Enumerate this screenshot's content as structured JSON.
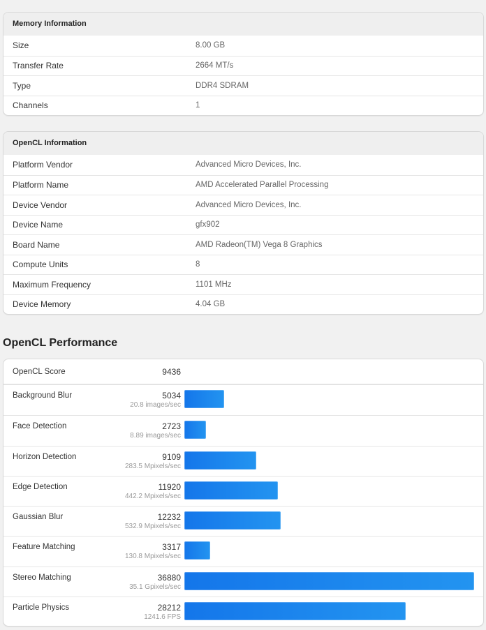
{
  "memory": {
    "title": "Memory Information",
    "rows": [
      {
        "label": "Size",
        "value": "8.00 GB"
      },
      {
        "label": "Transfer Rate",
        "value": "2664 MT/s"
      },
      {
        "label": "Type",
        "value": "DDR4 SDRAM"
      },
      {
        "label": "Channels",
        "value": "1"
      }
    ]
  },
  "opencl_info": {
    "title": "OpenCL Information",
    "rows": [
      {
        "label": "Platform Vendor",
        "value": "Advanced Micro Devices, Inc."
      },
      {
        "label": "Platform Name",
        "value": "AMD Accelerated Parallel Processing"
      },
      {
        "label": "Device Vendor",
        "value": "Advanced Micro Devices, Inc."
      },
      {
        "label": "Device Name",
        "value": "gfx902"
      },
      {
        "label": "Board Name",
        "value": "AMD Radeon(TM) Vega 8 Graphics"
      },
      {
        "label": "Compute Units",
        "value": "8"
      },
      {
        "label": "Maximum Frequency",
        "value": "1101 MHz"
      },
      {
        "label": "Device Memory",
        "value": "4.04 GB"
      }
    ]
  },
  "performance": {
    "title": "OpenCL Performance",
    "score_label": "OpenCL Score",
    "score": "9436",
    "bar_color_start": "#1476ea",
    "bar_color_end": "#2394f0",
    "tests": [
      {
        "label": "Background Blur",
        "score": "5034",
        "rate": "20.8 images/sec",
        "value": 5034
      },
      {
        "label": "Face Detection",
        "score": "2723",
        "rate": "8.89 images/sec",
        "value": 2723
      },
      {
        "label": "Horizon Detection",
        "score": "9109",
        "rate": "283.5 Mpixels/sec",
        "value": 9109
      },
      {
        "label": "Edge Detection",
        "score": "11920",
        "rate": "442.2 Mpixels/sec",
        "value": 11920
      },
      {
        "label": "Gaussian Blur",
        "score": "12232",
        "rate": "532.9 Mpixels/sec",
        "value": 12232
      },
      {
        "label": "Feature Matching",
        "score": "3317",
        "rate": "130.8 Mpixels/sec",
        "value": 3317
      },
      {
        "label": "Stereo Matching",
        "score": "36880",
        "rate": "35.1 Gpixels/sec",
        "value": 36880
      },
      {
        "label": "Particle Physics",
        "score": "28212",
        "rate": "1241.6 FPS",
        "value": 28212
      }
    ]
  }
}
